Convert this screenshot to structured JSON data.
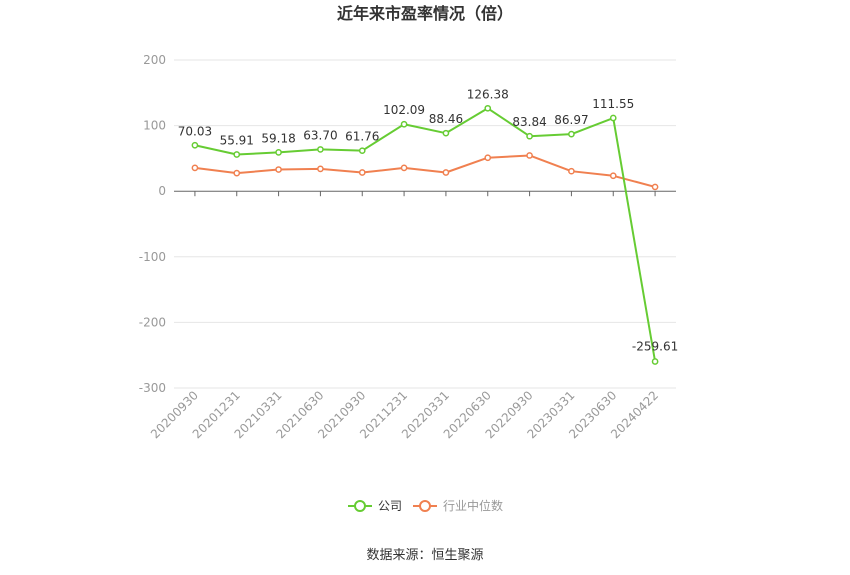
{
  "chart_data": {
    "type": "line",
    "title": "近年来市盈率情况（倍）",
    "source": "数据来源：恒生聚源",
    "categories": [
      "20200930",
      "20201231",
      "20210331",
      "20210630",
      "20210930",
      "20211231",
      "20220331",
      "20220630",
      "20220930",
      "20230331",
      "20230630",
      "20240422"
    ],
    "ylim": [
      -300,
      200
    ],
    "yticks": [
      200,
      100,
      0,
      -100,
      -200,
      -300
    ],
    "ytick_labels": [
      "200",
      "100",
      "0",
      "-100",
      "-200",
      "-300"
    ],
    "grid": true,
    "legend_position": "bottom",
    "series": [
      {
        "name": "公司",
        "color": "#66cc33",
        "values": [
          70.03,
          55.91,
          59.18,
          63.7,
          61.76,
          102.09,
          88.46,
          126.38,
          83.84,
          86.97,
          111.55,
          -259.61
        ],
        "labels": [
          "70.03",
          "55.91",
          "59.18",
          "63.70",
          "61.76",
          "102.09",
          "88.46",
          "126.38",
          "83.84",
          "86.97",
          "111.55",
          "-259.61"
        ]
      },
      {
        "name": "行业中位数",
        "color": "#f08050",
        "values": [
          35.5,
          27.5,
          33.0,
          34.0,
          28.5,
          35.5,
          28.5,
          51.0,
          54.5,
          30.5,
          23.5,
          6.5
        ]
      }
    ]
  }
}
